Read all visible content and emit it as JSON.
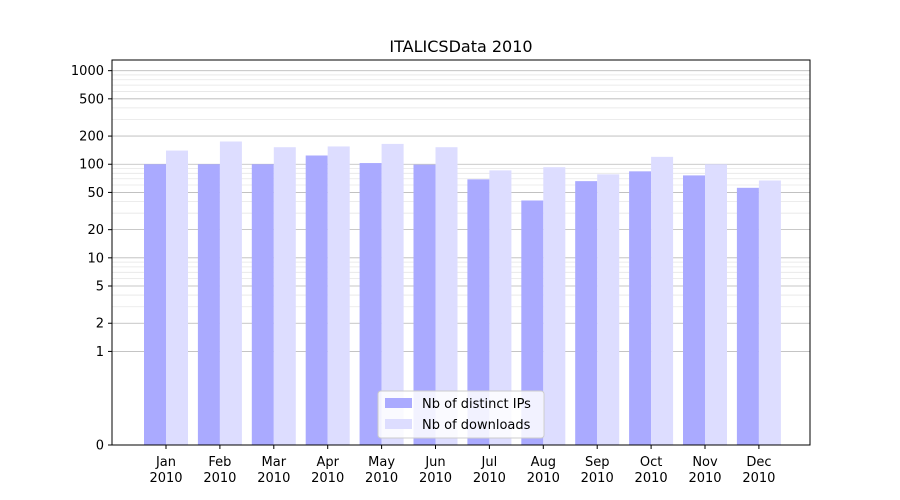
{
  "chart_data": {
    "type": "bar",
    "title": "ITALICSData 2010",
    "xlabel": "",
    "ylabel": "",
    "yscale": "symlog",
    "ylim": [
      0,
      1300
    ],
    "yticks": [
      0,
      1,
      2,
      5,
      10,
      20,
      50,
      100,
      200,
      500,
      1000
    ],
    "grid": true,
    "legend_position": "bottom-center",
    "categories": [
      [
        "Jan",
        "2010"
      ],
      [
        "Feb",
        "2010"
      ],
      [
        "Mar",
        "2010"
      ],
      [
        "Apr",
        "2010"
      ],
      [
        "May",
        "2010"
      ],
      [
        "Jun",
        "2010"
      ],
      [
        "Jul",
        "2010"
      ],
      [
        "Aug",
        "2010"
      ],
      [
        "Sep",
        "2010"
      ],
      [
        "Oct",
        "2010"
      ],
      [
        "Nov",
        "2010"
      ],
      [
        "Dec",
        "2010"
      ]
    ],
    "series": [
      {
        "name": "Nb of distinct IPs",
        "color": "#aaaaff",
        "values": [
          100,
          100,
          100,
          124,
          103,
          99,
          69,
          41,
          66,
          84,
          76,
          56
        ]
      },
      {
        "name": "Nb of downloads",
        "color": "#ddddff",
        "values": [
          140,
          175,
          152,
          155,
          165,
          152,
          86,
          93,
          78,
          120,
          100,
          67
        ]
      }
    ]
  }
}
